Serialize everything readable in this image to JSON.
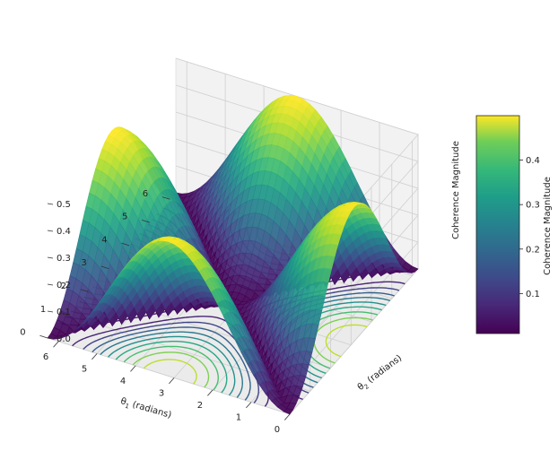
{
  "chart_data": {
    "type": "surface3d",
    "x": {
      "label_var": "θ",
      "label_sub": "1",
      "label_unit": " (radians)",
      "ticks": [
        "0",
        "1",
        "2",
        "3",
        "4",
        "5",
        "6"
      ],
      "range": [
        0,
        6.283
      ]
    },
    "y": {
      "label_var": "θ",
      "label_sub": "2",
      "label_unit": " (radians)",
      "ticks": [
        "0",
        "1",
        "2",
        "3",
        "4",
        "5",
        "6"
      ],
      "range": [
        0,
        6.283
      ]
    },
    "z": {
      "label": "Coherence Magnitude",
      "ticks": [
        "0.0",
        "0.1",
        "0.2",
        "0.3",
        "0.4",
        "0.5"
      ],
      "range": [
        0,
        0.5
      ]
    },
    "function": "0.5 * |sin((θ1 + θ2) / 2)| * |sin((θ1 - θ2) / 2)|",
    "value_range": [
      0.0,
      0.5
    ],
    "colormap": "viridis",
    "contour_projection": {
      "plane": "z = 0",
      "levels": [
        0.05,
        0.1,
        0.15,
        0.2,
        0.25,
        0.3,
        0.35,
        0.4,
        0.45
      ]
    },
    "colorbar": {
      "label": "Coherence Magnitude",
      "ticks": [
        "0.1",
        "0.2",
        "0.3",
        "0.4"
      ],
      "tick_values": [
        0.1,
        0.2,
        0.3,
        0.4
      ],
      "range": [
        0.01,
        0.5
      ]
    },
    "grid": true
  }
}
